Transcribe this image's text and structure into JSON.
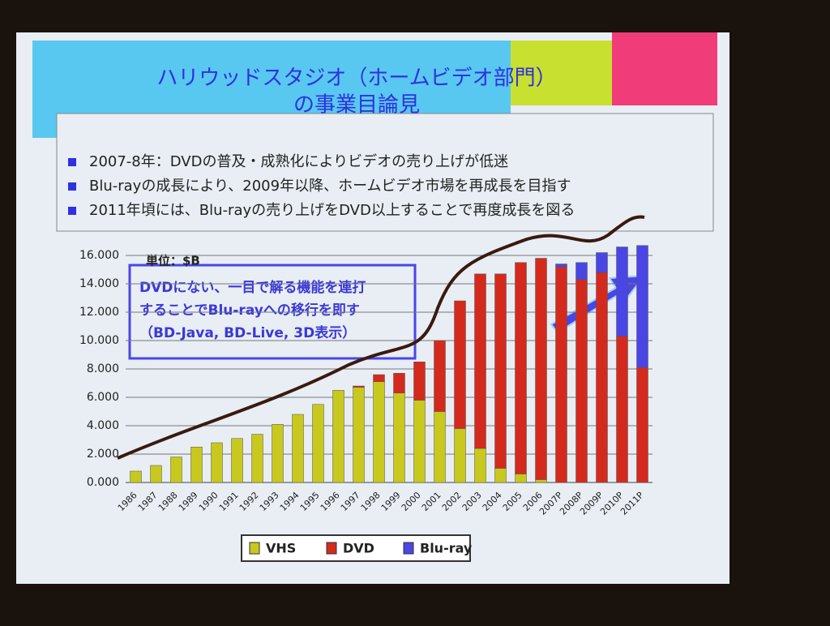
{
  "title_lines": [
    "ハリウッドスタジオ（ホームビデオ部門）",
    "の事業目論見"
  ],
  "bullets": [
    "2007-8年：DVDの普及・成熟化によりビデオの売り上げが低迷",
    "Blu-rayの成長により、2009年以降、ホームビデオ市場を再成長を目指す",
    "2011年頃には、Blu-rayの売り上げをDVD以上することで再度成長を図る"
  ],
  "chart_data": {
    "type": "stacked_bar",
    "unit_label": "単位：$B",
    "annotation_lines": [
      "DVDにない、一目で解る機能を連打",
      "することでBlu-rayへの移行を即す",
      "（BD-Java, BD-Live, 3D表示）"
    ],
    "categories": [
      "1986",
      "1987",
      "1988",
      "1989",
      "1990",
      "1991",
      "1992",
      "1993",
      "1994",
      "1995",
      "1996",
      "1997",
      "1998",
      "1999",
      "2000",
      "2001",
      "2002",
      "2003",
      "2004",
      "2005",
      "2006",
      "2007P",
      "2008P",
      "2009P",
      "2010P",
      "2011P"
    ],
    "series": [
      {
        "name": "VHS",
        "color": "#c8c81e",
        "values": [
          0.8,
          1.2,
          1.8,
          2.5,
          2.8,
          3.1,
          3.4,
          4.1,
          4.8,
          5.5,
          6.5,
          6.7,
          7.1,
          6.3,
          5.8,
          5.0,
          3.8,
          2.4,
          1.0,
          0.6,
          0.2,
          0,
          0,
          0,
          0,
          0
        ]
      },
      {
        "name": "DVD",
        "color": "#d42a1e",
        "values": [
          0,
          0,
          0,
          0,
          0,
          0,
          0,
          0,
          0,
          0,
          0,
          0.1,
          0.5,
          1.4,
          2.7,
          5.0,
          9.0,
          12.3,
          13.7,
          14.9,
          15.6,
          15.2,
          14.3,
          14.8,
          10.3,
          8.1
        ]
      },
      {
        "name": "Blu-ray",
        "color": "#4a46e6",
        "values": [
          0,
          0,
          0,
          0,
          0,
          0,
          0,
          0,
          0,
          0,
          0,
          0,
          0,
          0,
          0,
          0,
          0,
          0,
          0,
          0,
          0,
          0.2,
          1.2,
          1.4,
          6.3,
          8.6
        ]
      }
    ],
    "ylim": [
      0,
      16
    ],
    "yticks": [
      {
        "value": 0,
        "label": "0.000"
      },
      {
        "value": 2,
        "label": "2.000"
      },
      {
        "value": 4,
        "label": "4.000"
      },
      {
        "value": 6,
        "label": "6.000"
      },
      {
        "value": 8,
        "label": "8.000"
      },
      {
        "value": 10,
        "label": "10.000"
      },
      {
        "value": 12,
        "label": "12.000"
      },
      {
        "value": 14,
        "label": "14.000"
      },
      {
        "value": 16,
        "label": "16.000"
      }
    ],
    "grid": true
  }
}
